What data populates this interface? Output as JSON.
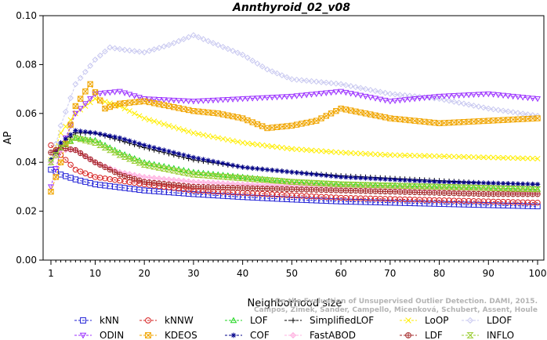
{
  "chart_data": {
    "type": "line",
    "title": "Annthyroid_02_v08",
    "xlabel": "Neighborhood size",
    "ylabel": "AP",
    "xlim": [
      1,
      100
    ],
    "ylim": [
      0,
      0.1
    ],
    "x_ticks": [
      "1",
      "10",
      "20",
      "30",
      "40",
      "50",
      "60",
      "70",
      "80",
      "90",
      "100"
    ],
    "y_ticks": [
      "0.00",
      "0.02",
      "0.04",
      "0.06",
      "0.08",
      "0.10"
    ],
    "grid": false,
    "legend_position": "bottom",
    "watermark": "Campos, Zimek, Sander, Campello, Micenková, Schubert, Assent, Houle\nOn the Evaluation of Unsupervised Outlier Detection. DAMI, 2015.",
    "series": [
      {
        "name": "kNN",
        "color": "#1f1fd6",
        "marker": "square",
        "points": [
          [
            1,
            0.037
          ],
          [
            3,
            0.035
          ],
          [
            6,
            0.033
          ],
          [
            10,
            0.031
          ],
          [
            20,
            0.0285
          ],
          [
            30,
            0.027
          ],
          [
            40,
            0.0258
          ],
          [
            50,
            0.0248
          ],
          [
            60,
            0.024
          ],
          [
            70,
            0.0235
          ],
          [
            80,
            0.023
          ],
          [
            90,
            0.0225
          ],
          [
            100,
            0.022
          ]
        ]
      },
      {
        "name": "kNNW",
        "color": "#d62020",
        "marker": "circle",
        "points": [
          [
            1,
            0.047
          ],
          [
            3,
            0.043
          ],
          [
            6,
            0.037
          ],
          [
            10,
            0.034
          ],
          [
            20,
            0.031
          ],
          [
            30,
            0.0285
          ],
          [
            40,
            0.0275
          ],
          [
            50,
            0.0265
          ],
          [
            60,
            0.0255
          ],
          [
            70,
            0.025
          ],
          [
            80,
            0.0245
          ],
          [
            90,
            0.024
          ],
          [
            100,
            0.0235
          ]
        ]
      },
      {
        "name": "LOF",
        "color": "#1fd61f",
        "marker": "triangle",
        "points": [
          [
            1,
            0.041
          ],
          [
            3,
            0.046
          ],
          [
            6,
            0.05
          ],
          [
            10,
            0.049
          ],
          [
            15,
            0.044
          ],
          [
            20,
            0.04
          ],
          [
            30,
            0.036
          ],
          [
            40,
            0.034
          ],
          [
            50,
            0.032
          ],
          [
            60,
            0.031
          ],
          [
            70,
            0.0305
          ],
          [
            80,
            0.03
          ],
          [
            90,
            0.0295
          ],
          [
            100,
            0.029
          ]
        ]
      },
      {
        "name": "SimplifiedLOF",
        "color": "#000000",
        "marker": "plus",
        "points": [
          [
            1,
            0.04
          ],
          [
            3,
            0.047
          ],
          [
            6,
            0.052
          ],
          [
            10,
            0.052
          ],
          [
            15,
            0.049
          ],
          [
            20,
            0.046
          ],
          [
            30,
            0.041
          ],
          [
            40,
            0.038
          ],
          [
            50,
            0.036
          ],
          [
            60,
            0.0345
          ],
          [
            70,
            0.0335
          ],
          [
            80,
            0.0325
          ],
          [
            90,
            0.0315
          ],
          [
            100,
            0.031
          ]
        ]
      },
      {
        "name": "LoOP",
        "color": "#ffee00",
        "marker": "x",
        "points": [
          [
            1,
            0.041
          ],
          [
            3,
            0.052
          ],
          [
            6,
            0.06
          ],
          [
            10,
            0.066
          ],
          [
            15,
            0.063
          ],
          [
            20,
            0.058
          ],
          [
            30,
            0.052
          ],
          [
            40,
            0.048
          ],
          [
            50,
            0.0455
          ],
          [
            60,
            0.044
          ],
          [
            70,
            0.043
          ],
          [
            80,
            0.0425
          ],
          [
            90,
            0.042
          ],
          [
            100,
            0.0415
          ]
        ]
      },
      {
        "name": "LDOF",
        "color": "#c8c8f0",
        "marker": "diamond",
        "points": [
          [
            1,
            0.04
          ],
          [
            3,
            0.055
          ],
          [
            6,
            0.072
          ],
          [
            10,
            0.082
          ],
          [
            13,
            0.087
          ],
          [
            16,
            0.086
          ],
          [
            20,
            0.085
          ],
          [
            25,
            0.088
          ],
          [
            30,
            0.092
          ],
          [
            35,
            0.088
          ],
          [
            40,
            0.084
          ],
          [
            45,
            0.078
          ],
          [
            50,
            0.074
          ],
          [
            60,
            0.072
          ],
          [
            70,
            0.068
          ],
          [
            80,
            0.066
          ],
          [
            90,
            0.062
          ],
          [
            100,
            0.059
          ]
        ]
      },
      {
        "name": "ODIN",
        "color": "#9b30ff",
        "marker": "triangle-down",
        "points": [
          [
            1,
            0.03
          ],
          [
            3,
            0.045
          ],
          [
            6,
            0.06
          ],
          [
            10,
            0.068
          ],
          [
            15,
            0.069
          ],
          [
            20,
            0.066
          ],
          [
            30,
            0.065
          ],
          [
            40,
            0.066
          ],
          [
            50,
            0.067
          ],
          [
            60,
            0.069
          ],
          [
            70,
            0.065
          ],
          [
            80,
            0.067
          ],
          [
            90,
            0.068
          ],
          [
            100,
            0.066
          ]
        ]
      },
      {
        "name": "KDEOS",
        "color": "#f0a500",
        "marker": "square-x",
        "points": [
          [
            1,
            0.028
          ],
          [
            3,
            0.04
          ],
          [
            6,
            0.063
          ],
          [
            9,
            0.072
          ],
          [
            12,
            0.062
          ],
          [
            15,
            0.064
          ],
          [
            20,
            0.065
          ],
          [
            25,
            0.063
          ],
          [
            30,
            0.061
          ],
          [
            35,
            0.06
          ],
          [
            40,
            0.058
          ],
          [
            45,
            0.054
          ],
          [
            50,
            0.055
          ],
          [
            55,
            0.057
          ],
          [
            60,
            0.062
          ],
          [
            65,
            0.06
          ],
          [
            70,
            0.058
          ],
          [
            80,
            0.056
          ],
          [
            90,
            0.057
          ],
          [
            100,
            0.058
          ]
        ]
      },
      {
        "name": "COF",
        "color": "#00008b",
        "marker": "asterisk",
        "points": [
          [
            1,
            0.041
          ],
          [
            3,
            0.048
          ],
          [
            6,
            0.053
          ],
          [
            10,
            0.052
          ],
          [
            15,
            0.05
          ],
          [
            20,
            0.047
          ],
          [
            30,
            0.042
          ],
          [
            40,
            0.038
          ],
          [
            50,
            0.036
          ],
          [
            60,
            0.034
          ],
          [
            70,
            0.033
          ],
          [
            80,
            0.032
          ],
          [
            90,
            0.0315
          ],
          [
            100,
            0.031
          ]
        ]
      },
      {
        "name": "FastABOD",
        "color": "#ffb0e0",
        "marker": "diamond-plus",
        "points": [
          [
            1,
            0.04
          ],
          [
            3,
            0.045
          ],
          [
            6,
            0.045
          ],
          [
            10,
            0.04
          ],
          [
            15,
            0.036
          ],
          [
            20,
            0.034
          ],
          [
            30,
            0.032
          ],
          [
            40,
            0.031
          ],
          [
            50,
            0.0305
          ],
          [
            60,
            0.03
          ],
          [
            70,
            0.0295
          ],
          [
            80,
            0.029
          ],
          [
            90,
            0.0285
          ],
          [
            100,
            0.028
          ]
        ]
      },
      {
        "name": "LDF",
        "color": "#a52a2a",
        "marker": "circle-plus",
        "points": [
          [
            1,
            0.044
          ],
          [
            3,
            0.046
          ],
          [
            6,
            0.045
          ],
          [
            10,
            0.04
          ],
          [
            15,
            0.035
          ],
          [
            20,
            0.032
          ],
          [
            30,
            0.03
          ],
          [
            40,
            0.0295
          ],
          [
            50,
            0.029
          ],
          [
            60,
            0.0285
          ],
          [
            70,
            0.028
          ],
          [
            80,
            0.0275
          ],
          [
            90,
            0.027
          ],
          [
            100,
            0.027
          ]
        ]
      },
      {
        "name": "INFLO",
        "color": "#9acd32",
        "marker": "hourglass",
        "points": [
          [
            1,
            0.04
          ],
          [
            3,
            0.046
          ],
          [
            6,
            0.05
          ],
          [
            10,
            0.048
          ],
          [
            15,
            0.043
          ],
          [
            20,
            0.039
          ],
          [
            30,
            0.035
          ],
          [
            40,
            0.0335
          ],
          [
            50,
            0.032
          ],
          [
            60,
            0.031
          ],
          [
            70,
            0.0305
          ],
          [
            80,
            0.03
          ],
          [
            90,
            0.0295
          ],
          [
            100,
            0.029
          ]
        ]
      }
    ],
    "legend_order": [
      "kNN",
      "kNNW",
      "LOF",
      "SimplifiedLOF",
      "LoOP",
      "LDOF",
      "ODIN",
      "KDEOS",
      "COF",
      "FastABOD",
      "LDF",
      "INFLO"
    ]
  }
}
